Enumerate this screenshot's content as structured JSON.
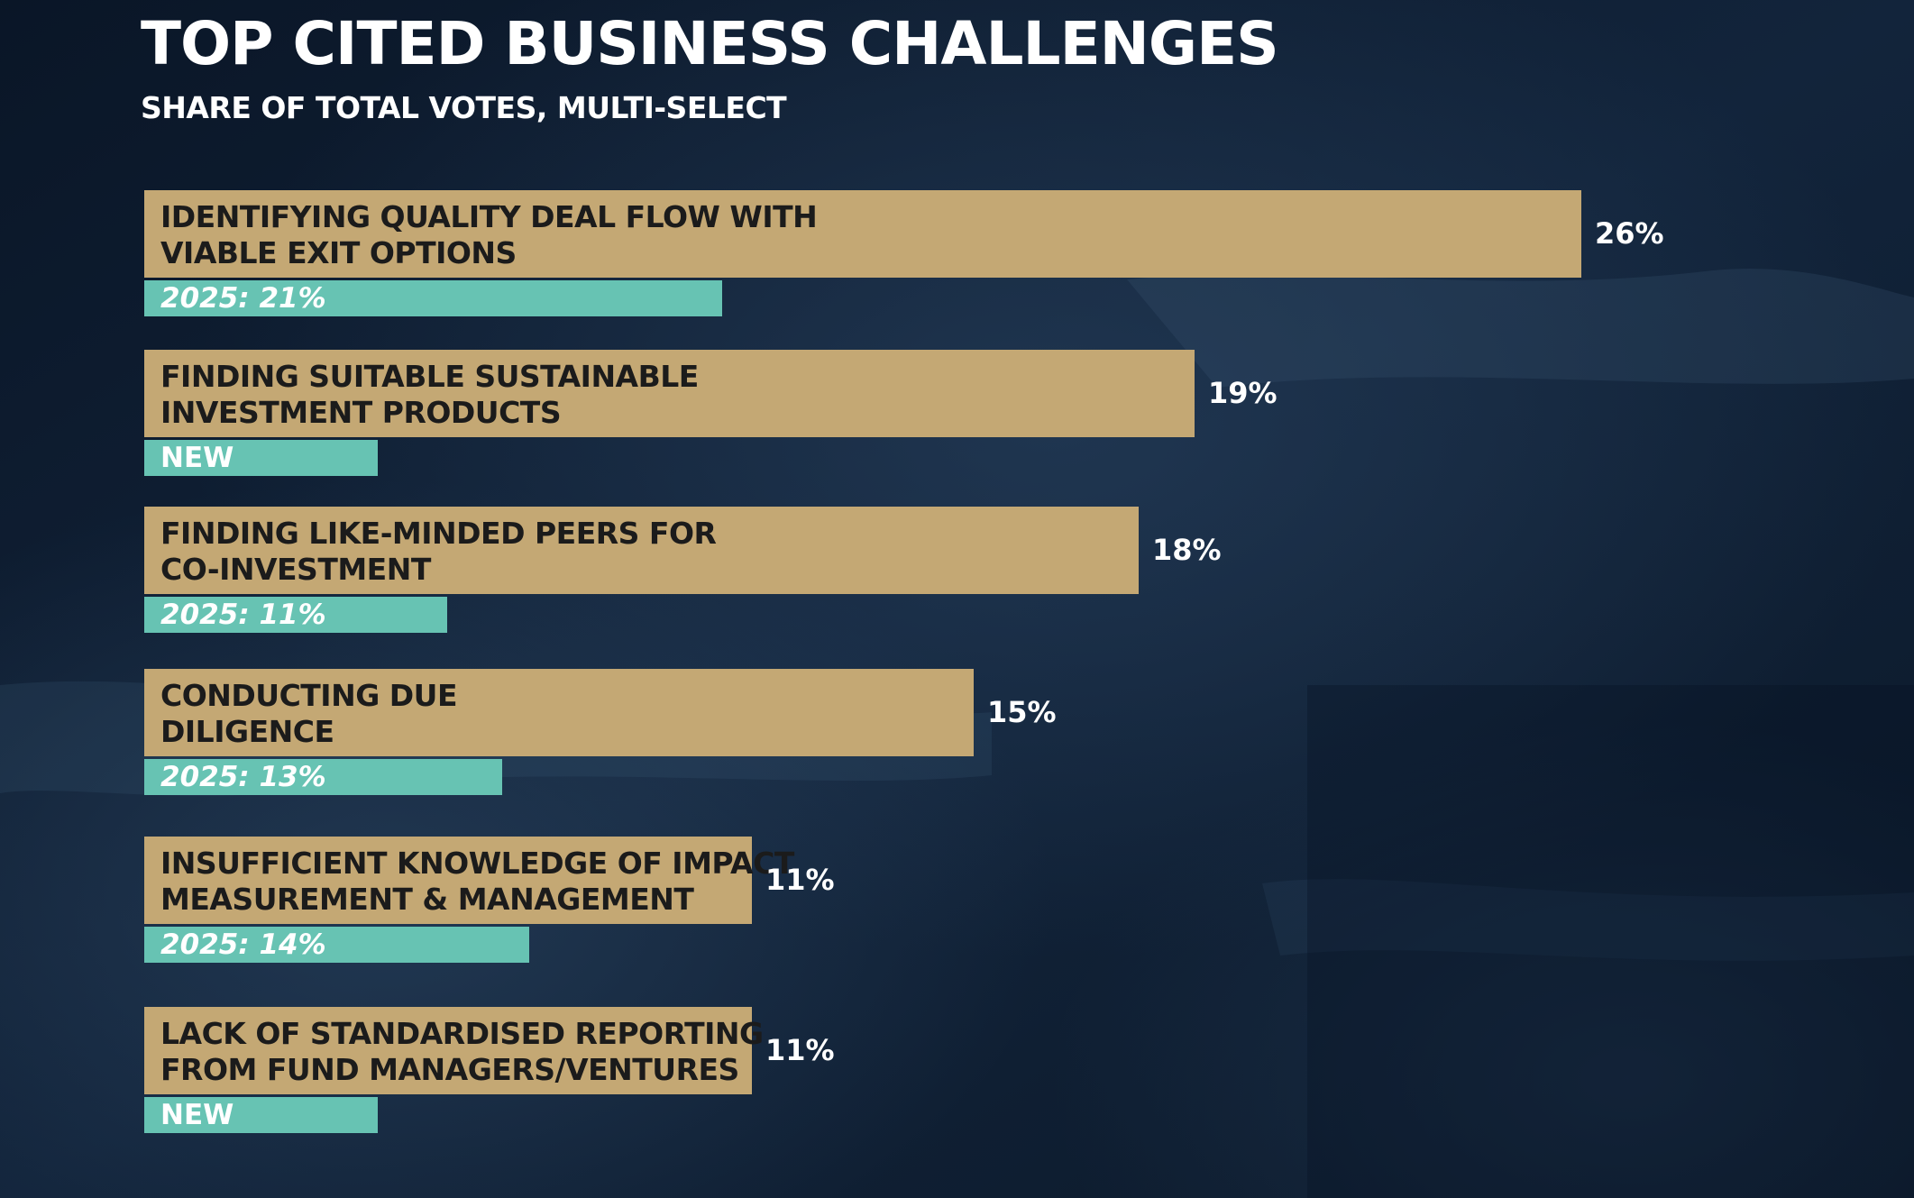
{
  "colors": {
    "background": "#0c1a2e",
    "bar": "#c4a874",
    "prior_tag": "#67c3b3",
    "text_on_bar": "#1b1b1b",
    "text_light": "#ffffff"
  },
  "chart_data": {
    "type": "bar",
    "orientation": "horizontal",
    "title": "TOP CITED BUSINESS CHALLENGES",
    "subtitle": "SHARE OF TOTAL VOTES, MULTI-SELECT",
    "unit": "%",
    "grid": false,
    "legend": "none",
    "categories": [
      [
        "IDENTIFYING QUALITY DEAL FLOW WITH",
        "VIABLE EXIT OPTIONS"
      ],
      [
        "FINDING SUITABLE SUSTAINABLE",
        "INVESTMENT PRODUCTS"
      ],
      [
        "FINDING LIKE-MINDED PEERS FOR",
        "CO-INVESTMENT"
      ],
      [
        "CONDUCTING DUE",
        "DILIGENCE"
      ],
      [
        "INSUFFICIENT KNOWLEDGE OF IMPACT",
        "MEASUREMENT & MANAGEMENT"
      ],
      [
        "LACK OF STANDARDISED REPORTING",
        "FROM FUND MANAGERS/VENTURES"
      ]
    ],
    "values": [
      26,
      19,
      18,
      15,
      11,
      11
    ],
    "value_labels": [
      "26%",
      "19%",
      "18%",
      "15%",
      "11%",
      "11%"
    ],
    "prior_values": [
      21,
      null,
      11,
      13,
      14,
      null
    ],
    "prior_labels": [
      "2025: 21%",
      "NEW",
      "2025: 11%",
      "2025: 13%",
      "2025: 14%",
      "NEW"
    ]
  }
}
